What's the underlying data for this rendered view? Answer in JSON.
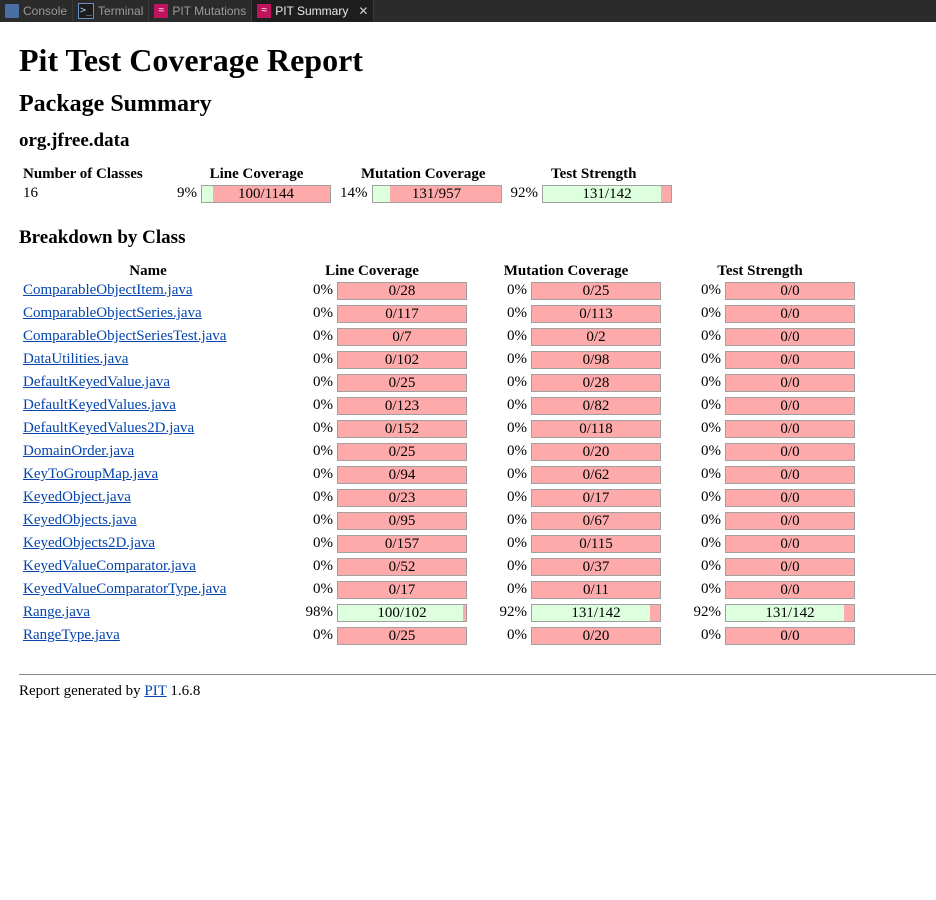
{
  "tabs": [
    {
      "label": "Console",
      "icon": "console-icon",
      "active": false
    },
    {
      "label": "Terminal",
      "icon": "terminal-icon",
      "active": false
    },
    {
      "label": "PIT Mutations",
      "icon": "pit-icon",
      "active": false
    },
    {
      "label": "PIT Summary",
      "icon": "pit-icon",
      "active": true,
      "close": "✕"
    }
  ],
  "report": {
    "title": "Pit Test Coverage Report",
    "package_heading": "Package Summary",
    "package_name": "org.jfree.data",
    "summary_headers": {
      "classes": "Number of Classes",
      "line": "Line Coverage",
      "mutation": "Mutation Coverage",
      "strength": "Test Strength"
    },
    "summary": {
      "classes": "16",
      "line": {
        "pct": "9%",
        "label": "100/1144",
        "fraction": 0.087
      },
      "mutation": {
        "pct": "14%",
        "label": "131/957",
        "fraction": 0.137
      },
      "strength": {
        "pct": "92%",
        "label": "131/142",
        "fraction": 0.923
      }
    },
    "breakdown_heading": "Breakdown by Class",
    "breakdown_headers": {
      "name": "Name",
      "line": "Line Coverage",
      "mutation": "Mutation Coverage",
      "strength": "Test Strength"
    },
    "classes": [
      {
        "name": "ComparableObjectItem.java",
        "line_pct": "0%",
        "line": "0/28",
        "line_f": 0,
        "mut_pct": "0%",
        "mut": "0/25",
        "mut_f": 0,
        "str_pct": "0%",
        "str": "0/0",
        "str_f": 0
      },
      {
        "name": "ComparableObjectSeries.java",
        "line_pct": "0%",
        "line": "0/117",
        "line_f": 0,
        "mut_pct": "0%",
        "mut": "0/113",
        "mut_f": 0,
        "str_pct": "0%",
        "str": "0/0",
        "str_f": 0
      },
      {
        "name": "ComparableObjectSeriesTest.java",
        "line_pct": "0%",
        "line": "0/7",
        "line_f": 0,
        "mut_pct": "0%",
        "mut": "0/2",
        "mut_f": 0,
        "str_pct": "0%",
        "str": "0/0",
        "str_f": 0
      },
      {
        "name": "DataUtilities.java",
        "line_pct": "0%",
        "line": "0/102",
        "line_f": 0,
        "mut_pct": "0%",
        "mut": "0/98",
        "mut_f": 0,
        "str_pct": "0%",
        "str": "0/0",
        "str_f": 0
      },
      {
        "name": "DefaultKeyedValue.java",
        "line_pct": "0%",
        "line": "0/25",
        "line_f": 0,
        "mut_pct": "0%",
        "mut": "0/28",
        "mut_f": 0,
        "str_pct": "0%",
        "str": "0/0",
        "str_f": 0
      },
      {
        "name": "DefaultKeyedValues.java",
        "line_pct": "0%",
        "line": "0/123",
        "line_f": 0,
        "mut_pct": "0%",
        "mut": "0/82",
        "mut_f": 0,
        "str_pct": "0%",
        "str": "0/0",
        "str_f": 0
      },
      {
        "name": "DefaultKeyedValues2D.java",
        "line_pct": "0%",
        "line": "0/152",
        "line_f": 0,
        "mut_pct": "0%",
        "mut": "0/118",
        "mut_f": 0,
        "str_pct": "0%",
        "str": "0/0",
        "str_f": 0
      },
      {
        "name": "DomainOrder.java",
        "line_pct": "0%",
        "line": "0/25",
        "line_f": 0,
        "mut_pct": "0%",
        "mut": "0/20",
        "mut_f": 0,
        "str_pct": "0%",
        "str": "0/0",
        "str_f": 0
      },
      {
        "name": "KeyToGroupMap.java",
        "line_pct": "0%",
        "line": "0/94",
        "line_f": 0,
        "mut_pct": "0%",
        "mut": "0/62",
        "mut_f": 0,
        "str_pct": "0%",
        "str": "0/0",
        "str_f": 0
      },
      {
        "name": "KeyedObject.java",
        "line_pct": "0%",
        "line": "0/23",
        "line_f": 0,
        "mut_pct": "0%",
        "mut": "0/17",
        "mut_f": 0,
        "str_pct": "0%",
        "str": "0/0",
        "str_f": 0
      },
      {
        "name": "KeyedObjects.java",
        "line_pct": "0%",
        "line": "0/95",
        "line_f": 0,
        "mut_pct": "0%",
        "mut": "0/67",
        "mut_f": 0,
        "str_pct": "0%",
        "str": "0/0",
        "str_f": 0
      },
      {
        "name": "KeyedObjects2D.java",
        "line_pct": "0%",
        "line": "0/157",
        "line_f": 0,
        "mut_pct": "0%",
        "mut": "0/115",
        "mut_f": 0,
        "str_pct": "0%",
        "str": "0/0",
        "str_f": 0
      },
      {
        "name": "KeyedValueComparator.java",
        "line_pct": "0%",
        "line": "0/52",
        "line_f": 0,
        "mut_pct": "0%",
        "mut": "0/37",
        "mut_f": 0,
        "str_pct": "0%",
        "str": "0/0",
        "str_f": 0
      },
      {
        "name": "KeyedValueComparatorType.java",
        "line_pct": "0%",
        "line": "0/17",
        "line_f": 0,
        "mut_pct": "0%",
        "mut": "0/11",
        "mut_f": 0,
        "str_pct": "0%",
        "str": "0/0",
        "str_f": 0
      },
      {
        "name": "Range.java",
        "line_pct": "98%",
        "line": "100/102",
        "line_f": 0.98,
        "mut_pct": "92%",
        "mut": "131/142",
        "mut_f": 0.923,
        "str_pct": "92%",
        "str": "131/142",
        "str_f": 0.923
      },
      {
        "name": "RangeType.java",
        "line_pct": "0%",
        "line": "0/25",
        "line_f": 0,
        "mut_pct": "0%",
        "mut": "0/20",
        "mut_f": 0,
        "str_pct": "0%",
        "str": "0/0",
        "str_f": 0
      }
    ],
    "footer": {
      "prefix": "Report generated by ",
      "link": "PIT",
      "version": " 1.6.8"
    }
  },
  "colors": {
    "covered": "#ddffdd",
    "uncovered": "#ffaaaa",
    "link": "#0645ad",
    "tabbar": "#2b2b2b"
  }
}
